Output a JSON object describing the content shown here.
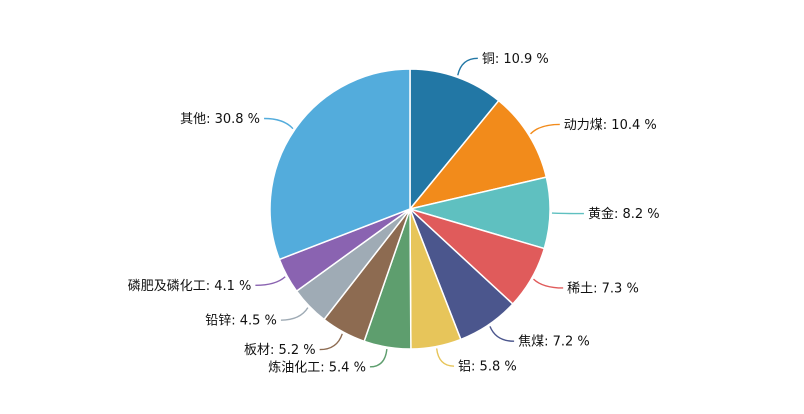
{
  "chart_data": {
    "type": "pie",
    "title": "",
    "unit_suffix": " %",
    "slices": [
      {
        "label": "铜",
        "value": 10.9,
        "color": "#2277a5"
      },
      {
        "label": "动力煤",
        "value": 10.4,
        "color": "#f28b1b"
      },
      {
        "label": "黄金",
        "value": 8.2,
        "color": "#5fc0c0"
      },
      {
        "label": "稀土",
        "value": 7.3,
        "color": "#e05b5b"
      },
      {
        "label": "焦煤",
        "value": 7.2,
        "color": "#4b568d"
      },
      {
        "label": "铝",
        "value": 5.8,
        "color": "#e7c55a"
      },
      {
        "label": "炼油化工",
        "value": 5.4,
        "color": "#5e9e6e"
      },
      {
        "label": "板材",
        "value": 5.2,
        "color": "#8d6b51"
      },
      {
        "label": "铅锌",
        "value": 4.5,
        "color": "#9fabb5"
      },
      {
        "label": "磷肥及磷化工",
        "value": 4.1,
        "color": "#8a63b1"
      },
      {
        "label": "其他",
        "value": 30.8,
        "color": "#53acdc"
      }
    ]
  }
}
